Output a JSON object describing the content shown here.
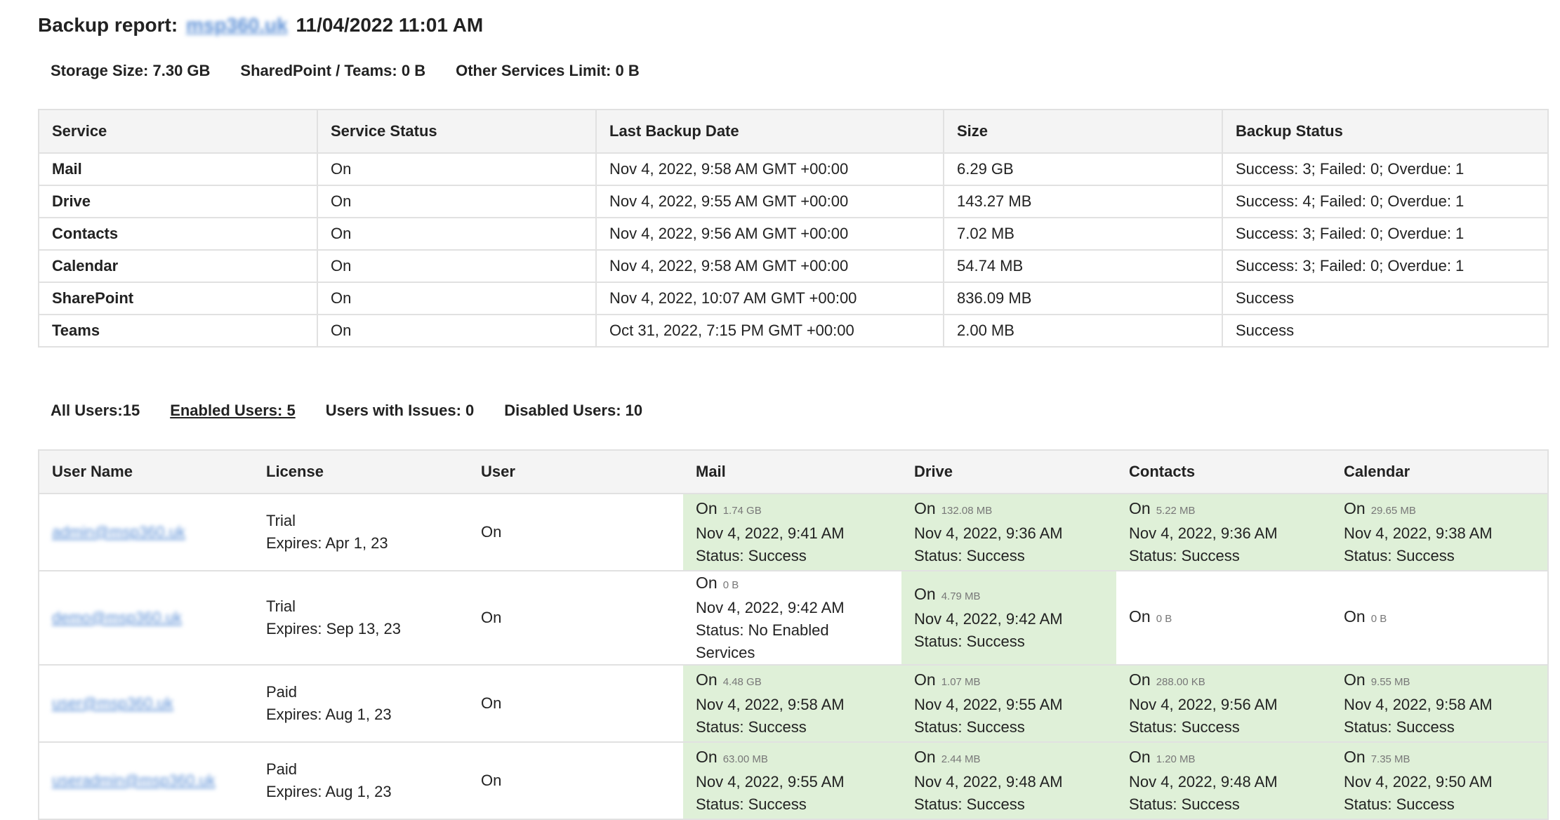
{
  "header": {
    "prefix": "Backup report:",
    "domain": "msp360.uk",
    "datetime": "11/04/2022 11:01 AM"
  },
  "summary": {
    "storage": "Storage Size: 7.30 GB",
    "sharepoint": "SharedPoint / Teams: 0 B",
    "other": "Other Services Limit: 0 B"
  },
  "services": {
    "columns": [
      "Service",
      "Service Status",
      "Last Backup Date",
      "Size",
      "Backup Status"
    ],
    "rows": [
      {
        "service": "Mail",
        "status": "On",
        "date": "Nov 4, 2022, 9:58 AM GMT +00:00",
        "size": "6.29 GB",
        "backup": "Success: 3; Failed: 0; Overdue: 1"
      },
      {
        "service": "Drive",
        "status": "On",
        "date": "Nov 4, 2022, 9:55 AM GMT +00:00",
        "size": "143.27 MB",
        "backup": "Success: 4; Failed: 0; Overdue: 1"
      },
      {
        "service": "Contacts",
        "status": "On",
        "date": "Nov 4, 2022, 9:56 AM GMT +00:00",
        "size": "7.02 MB",
        "backup": "Success: 3; Failed: 0; Overdue: 1"
      },
      {
        "service": "Calendar",
        "status": "On",
        "date": "Nov 4, 2022, 9:58 AM GMT +00:00",
        "size": "54.74 MB",
        "backup": "Success: 3; Failed: 0; Overdue: 1"
      },
      {
        "service": "SharePoint",
        "status": "On",
        "date": "Nov 4, 2022, 10:07 AM GMT +00:00",
        "size": "836.09 MB",
        "backup": "Success"
      },
      {
        "service": "Teams",
        "status": "On",
        "date": "Oct 31, 2022, 7:15 PM GMT +00:00",
        "size": "2.00 MB",
        "backup": "Success"
      }
    ]
  },
  "filters": {
    "all": "All Users:15",
    "enabled": "Enabled Users: 5",
    "issues": "Users with Issues: 0",
    "disabled": "Disabled Users: 10"
  },
  "users": {
    "columns": [
      "User Name",
      "License",
      "User",
      "Mail",
      "Drive",
      "Contacts",
      "Calendar"
    ],
    "rows": [
      {
        "email": "admin@msp360.uk",
        "license_type": "Trial",
        "license_expires": "Expires: Apr 1, 23",
        "user_status": "On",
        "mail": {
          "on": "On",
          "size": "1.74 GB",
          "date": "Nov 4, 2022, 9:41 AM",
          "status": "Status: Success"
        },
        "drive": {
          "on": "On",
          "size": "132.08 MB",
          "date": "Nov 4, 2022, 9:36 AM",
          "status": "Status: Success"
        },
        "contacts": {
          "on": "On",
          "size": "5.22 MB",
          "date": "Nov 4, 2022, 9:36 AM",
          "status": "Status: Success"
        },
        "calendar": {
          "on": "On",
          "size": "29.65 MB",
          "date": "Nov 4, 2022, 9:38 AM",
          "status": "Status: Success"
        }
      },
      {
        "email": "demo@msp360.uk",
        "license_type": "Trial",
        "license_expires": "Expires: Sep 13, 23",
        "user_status": "On",
        "mail": {
          "on": "On",
          "size": "0 B",
          "date": "Nov 4, 2022, 9:42 AM",
          "status": "Status: No Enabled Services"
        },
        "drive": {
          "on": "On",
          "size": "4.79 MB",
          "date": "Nov 4, 2022, 9:42 AM",
          "status": "Status: Success"
        },
        "contacts": {
          "on": "On",
          "size": "0 B",
          "date": "",
          "status": ""
        },
        "calendar": {
          "on": "On",
          "size": "0 B",
          "date": "",
          "status": ""
        }
      },
      {
        "email": "user@msp360.uk",
        "license_type": "Paid",
        "license_expires": "Expires: Aug 1, 23",
        "user_status": "On",
        "mail": {
          "on": "On",
          "size": "4.48 GB",
          "date": "Nov 4, 2022, 9:58 AM",
          "status": "Status: Success"
        },
        "drive": {
          "on": "On",
          "size": "1.07 MB",
          "date": "Nov 4, 2022, 9:55 AM",
          "status": "Status: Success"
        },
        "contacts": {
          "on": "On",
          "size": "288.00 KB",
          "date": "Nov 4, 2022, 9:56 AM",
          "status": "Status: Success"
        },
        "calendar": {
          "on": "On",
          "size": "9.55 MB",
          "date": "Nov 4, 2022, 9:58 AM",
          "status": "Status: Success"
        }
      },
      {
        "email": "useradmin@msp360.uk",
        "license_type": "Paid",
        "license_expires": "Expires: Aug 1, 23",
        "user_status": "On",
        "mail": {
          "on": "On",
          "size": "63.00 MB",
          "date": "Nov 4, 2022, 9:55 AM",
          "status": "Status: Success"
        },
        "drive": {
          "on": "On",
          "size": "2.44 MB",
          "date": "Nov 4, 2022, 9:48 AM",
          "status": "Status: Success"
        },
        "contacts": {
          "on": "On",
          "size": "1.20 MB",
          "date": "Nov 4, 2022, 9:48 AM",
          "status": "Status: Success"
        },
        "calendar": {
          "on": "On",
          "size": "7.35 MB",
          "date": "Nov 4, 2022, 9:50 AM",
          "status": "Status: Success"
        }
      }
    ]
  },
  "colors": {
    "success_bg": "#dff0d8",
    "header_bg": "#f4f4f4",
    "border": "#e1e1e1",
    "link": "#5b8fd6"
  }
}
